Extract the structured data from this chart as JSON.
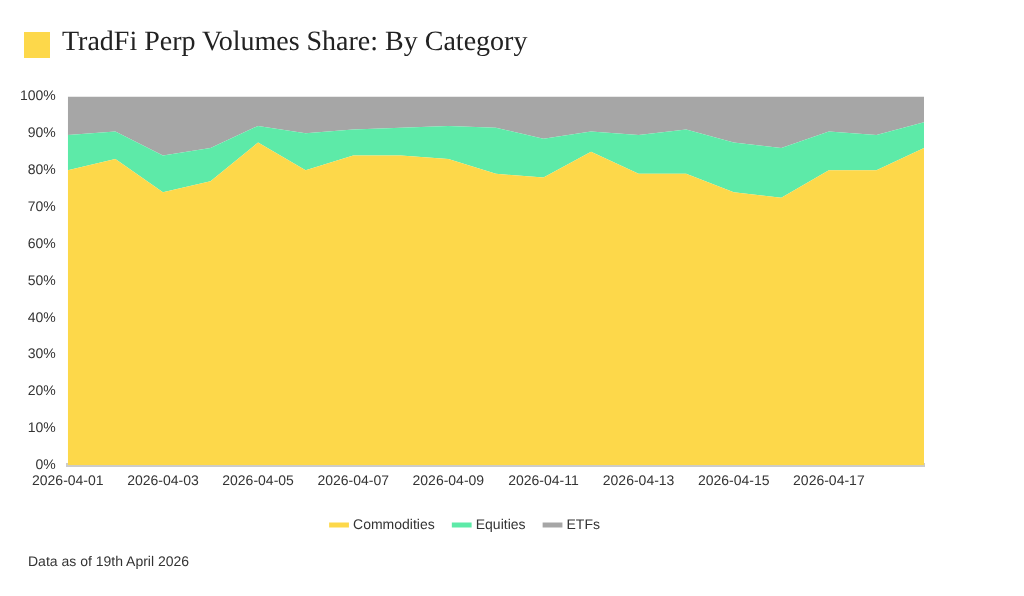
{
  "chart_data": {
    "type": "area",
    "title": "TradFi Perp Volumes Share: By Category",
    "annotations": [
      "Data as of 19th April 2026"
    ],
    "categories": [
      "2026-04-01",
      null,
      "2026-04-03",
      null,
      "2026-04-05",
      null,
      "2026-04-07",
      null,
      "2026-04-09",
      null,
      "2026-04-11",
      null,
      "2026-04-13",
      null,
      "2026-04-15",
      null,
      "2026-04-17",
      null,
      null
    ],
    "stacked": true,
    "series": [
      {
        "name": "Commodities",
        "color": "#fdd84a",
        "values": [
          80,
          83,
          74,
          77,
          87.5,
          80,
          84,
          84,
          83,
          79,
          78,
          85,
          79,
          79,
          74,
          72.5,
          80,
          80,
          86
        ]
      },
      {
        "name": "Equities",
        "color": "#5deaa8",
        "values": [
          9.5,
          7.5,
          10,
          9,
          4.5,
          10,
          7,
          7.5,
          9,
          12.5,
          10.5,
          5.5,
          10.5,
          12,
          13.5,
          13.5,
          10.5,
          9.5,
          7
        ]
      },
      {
        "name": "ETFs",
        "color": "#a6a6a6",
        "values": [
          10.5,
          9.5,
          16,
          14,
          8,
          10,
          9,
          8.5,
          8,
          8.5,
          11.5,
          9.5,
          10.5,
          9,
          12.5,
          14,
          9.5,
          10.5,
          7
        ]
      }
    ],
    "ylim": [
      0,
      100
    ],
    "yticks": [
      {
        "value": 0,
        "label": "0%"
      },
      {
        "value": 10,
        "label": "10%"
      },
      {
        "value": 20,
        "label": "20%"
      },
      {
        "value": 30,
        "label": "30%"
      },
      {
        "value": 40,
        "label": "40%"
      },
      {
        "value": 50,
        "label": "50%"
      },
      {
        "value": 60,
        "label": "60%"
      },
      {
        "value": 70,
        "label": "70%"
      },
      {
        "value": 80,
        "label": "80%"
      },
      {
        "value": 90,
        "label": "90%"
      },
      {
        "value": 100,
        "label": "100%"
      }
    ],
    "grid": false,
    "legend": "bottom"
  }
}
